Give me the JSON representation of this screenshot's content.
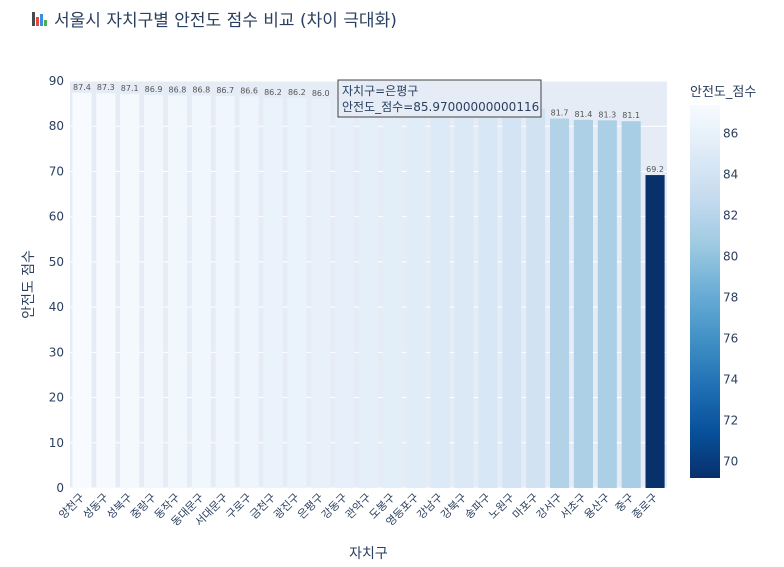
{
  "title": "서울시 자치구별 안전도 점수 비교 (차이 극대화)",
  "title_icon": "bar-chart-icon",
  "chart_data": {
    "type": "bar",
    "xlabel": "자치구",
    "ylabel": "안전도 점수",
    "ylim": [
      0,
      90
    ],
    "yticks": [
      0,
      10,
      20,
      30,
      40,
      50,
      60,
      70,
      80,
      90
    ],
    "grid": true,
    "categories": [
      "양천구",
      "성동구",
      "성북구",
      "중랑구",
      "동작구",
      "동대문구",
      "서대문구",
      "구로구",
      "금천구",
      "광진구",
      "은평구",
      "강동구",
      "관악구",
      "도봉구",
      "영등포구",
      "강남구",
      "강북구",
      "송파구",
      "노원구",
      "마포구",
      "강서구",
      "서초구",
      "용산구",
      "중구",
      "종로구"
    ],
    "values": [
      87.4,
      87.3,
      87.1,
      86.9,
      86.8,
      86.8,
      86.7,
      86.6,
      86.2,
      86.2,
      86.0,
      85.9,
      85.7,
      85.5,
      85.3,
      84.9,
      84.8,
      84.6,
      84.2,
      83.9,
      81.7,
      81.4,
      81.3,
      81.1,
      69.2
    ],
    "labels": [
      "87.4",
      "87.3",
      "87.1",
      "86.9",
      "86.8",
      "86.8",
      "86.7",
      "86.6",
      "86.2",
      "86.2",
      "86.0",
      "",
      "",
      "",
      "",
      "",
      "",
      "",
      "",
      "",
      "81.7",
      "81.4",
      "81.3",
      "81.1",
      "69.2"
    ],
    "colorbar": {
      "title": "안전도_점수",
      "ticks": [
        70,
        72,
        74,
        76,
        78,
        80,
        82,
        84,
        86
      ],
      "range": [
        69.2,
        87.4
      ],
      "colorscale": [
        "#08306b",
        "#08519c",
        "#2171b5",
        "#4292c6",
        "#6baed6",
        "#9ecae1",
        "#c6dbef",
        "#deebf7",
        "#f7fbff"
      ]
    },
    "plot_background": "#e5ecf6",
    "tooltip": {
      "line1": "자치구=은평구",
      "line2": "안전도_점수=85.97000000000116"
    }
  }
}
